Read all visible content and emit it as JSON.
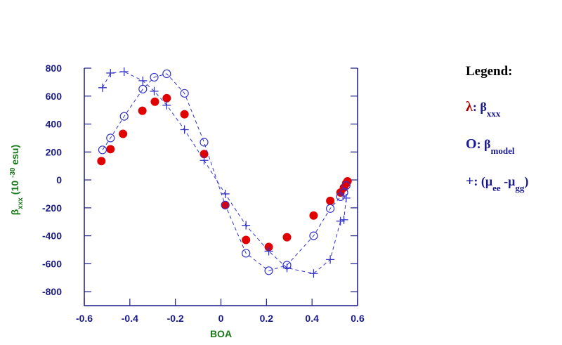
{
  "chart_data": {
    "type": "scatter",
    "xlim": [
      -0.6,
      0.6
    ],
    "ylim": [
      -900,
      800
    ],
    "xticks": [
      -0.6,
      -0.4,
      -0.2,
      0,
      0.2,
      0.4,
      0.6
    ],
    "yticks": [
      -800,
      -600,
      -400,
      -200,
      0,
      200,
      400,
      600,
      800
    ],
    "x_label": "BOA",
    "y_label": [
      {
        "text": "β"
      },
      {
        "sub": "xxx"
      },
      {
        "text": " (10 "
      },
      {
        "sup": "-30"
      },
      {
        "text": " esu)"
      }
    ],
    "series": [
      {
        "color": "#e00000",
        "marker": "filled-circle",
        "linestyle": "none",
        "x": [
          -0.525,
          -0.485,
          -0.43,
          -0.345,
          -0.29,
          -0.238,
          -0.16,
          -0.074,
          0.019,
          0.11,
          0.21,
          0.29,
          0.407,
          0.48,
          0.525,
          0.54,
          0.55,
          0.556
        ],
        "values": [
          135,
          220,
          330,
          495,
          560,
          585,
          470,
          185,
          -180,
          -430,
          -480,
          -410,
          -255,
          -150,
          -90,
          -55,
          -25,
          -10
        ]
      },
      {
        "color": "#3333cc",
        "marker": "open-circle",
        "linestyle": "dashed",
        "x": [
          -0.52,
          -0.485,
          -0.425,
          -0.343,
          -0.293,
          -0.238,
          -0.16,
          -0.074,
          0.019,
          0.11,
          0.21,
          0.29,
          0.407,
          0.48,
          0.525,
          0.54,
          0.55
        ],
        "values": [
          215,
          300,
          455,
          650,
          735,
          760,
          620,
          270,
          -180,
          -525,
          -650,
          -610,
          -400,
          -205,
          -120,
          -90,
          -40
        ]
      },
      {
        "color": "#3333cc",
        "marker": "plus",
        "linestyle": "dashed",
        "x": [
          -0.52,
          -0.485,
          -0.425,
          -0.343,
          -0.293,
          -0.238,
          -0.16,
          -0.074,
          0.019,
          0.11,
          0.21,
          0.29,
          0.407,
          0.48,
          0.525,
          0.54,
          0.55
        ],
        "values": [
          660,
          765,
          775,
          710,
          635,
          535,
          360,
          140,
          -100,
          -325,
          -510,
          -630,
          -670,
          -570,
          -295,
          -285,
          -130
        ]
      }
    ],
    "legend": {
      "title": "Legend:",
      "entries": [
        {
          "symbol": "λ",
          "symbol_color": "#b00000",
          "parts": [
            {
              "text": ": β"
            },
            {
              "sub": "xxx"
            }
          ]
        },
        {
          "symbol": "O",
          "symbol_color": "#1a1aa0",
          "parts": [
            {
              "text": ": β"
            },
            {
              "sub": "model"
            }
          ]
        },
        {
          "symbol": "+",
          "symbol_color": "#1a1aa0",
          "parts": [
            {
              "text": ": ("
            },
            {
              "text": "μ"
            },
            {
              "sub": "ee"
            },
            {
              "text": " -μ"
            },
            {
              "sub": "gg"
            },
            {
              "text": ")"
            }
          ]
        }
      ]
    }
  }
}
